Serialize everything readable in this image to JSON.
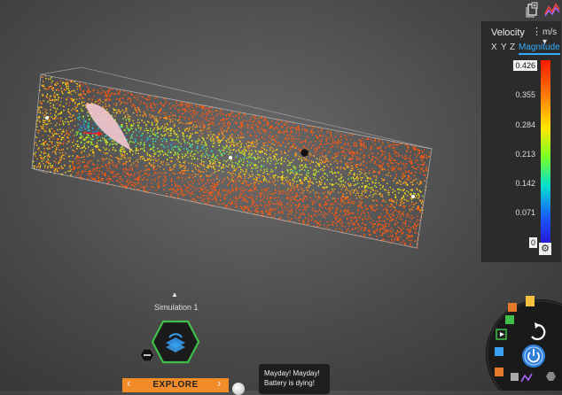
{
  "toolbar": {
    "icons": [
      "layers-plus-icon",
      "graph-icon"
    ]
  },
  "legend": {
    "quantity": "Velocity",
    "unit": "m/s",
    "tabs": [
      "X",
      "Y",
      "Z",
      "Magnitude"
    ],
    "active_tab": "Magnitude",
    "ticks": [
      "0.426",
      "0.355",
      "0.284",
      "0.213",
      "0.142",
      "0.071",
      "0"
    ],
    "range": [
      0,
      0.426
    ]
  },
  "simulation": {
    "name": "Simulation 1",
    "mode": "Explore"
  },
  "notification": {
    "line1": "Mayday! Mayday!",
    "line2": "Battery is dying!"
  },
  "colors": {
    "accent": "#f28c28",
    "highlight": "#33aaff",
    "panel": "#2b2b2b"
  }
}
